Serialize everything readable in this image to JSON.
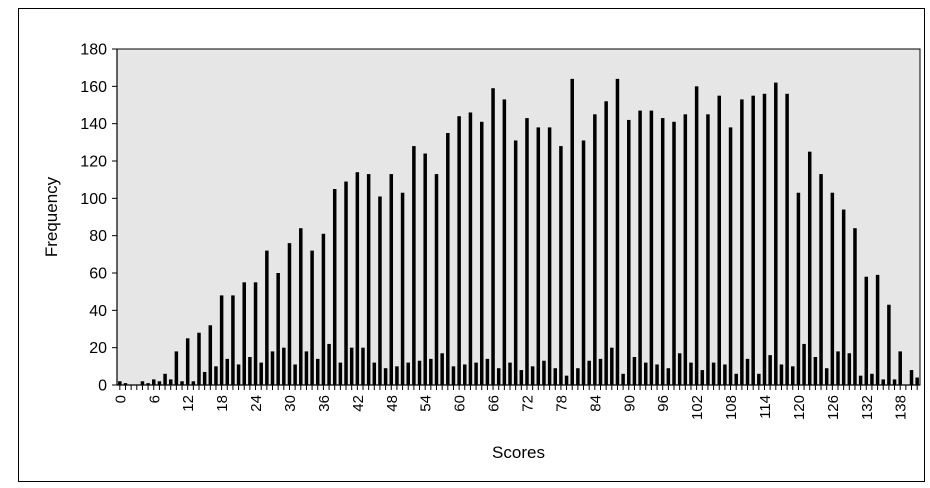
{
  "chart_data": {
    "type": "bar",
    "title": "",
    "xlabel": "Scores",
    "ylabel": "Frequency",
    "ylim": [
      0,
      180
    ],
    "yticks": [
      0,
      20,
      40,
      60,
      80,
      100,
      120,
      140,
      160,
      180
    ],
    "xlim": [
      0,
      141
    ],
    "xtick_labels": [
      "0",
      "6",
      "12",
      "18",
      "24",
      "30",
      "36",
      "42",
      "48",
      "54",
      "60",
      "66",
      "72",
      "78",
      "84",
      "90",
      "96",
      "102",
      "108",
      "114",
      "120",
      "126",
      "132",
      "138"
    ],
    "grid": false,
    "plot_background": "#e6e6e6",
    "bar_color": "#000000",
    "scores": [
      0,
      1,
      2,
      3,
      4,
      5,
      6,
      7,
      8,
      9,
      10,
      11,
      12,
      13,
      14,
      15,
      16,
      17,
      18,
      19,
      20,
      21,
      22,
      23,
      24,
      25,
      26,
      27,
      28,
      29,
      30,
      31,
      32,
      33,
      34,
      35,
      36,
      37,
      38,
      39,
      40,
      41,
      42,
      43,
      44,
      45,
      46,
      47,
      48,
      49,
      50,
      51,
      52,
      53,
      54,
      55,
      56,
      57,
      58,
      59,
      60,
      61,
      62,
      63,
      64,
      65,
      66,
      67,
      68,
      69,
      70,
      71,
      72,
      73,
      74,
      75,
      76,
      77,
      78,
      79,
      80,
      81,
      82,
      83,
      84,
      85,
      86,
      87,
      88,
      89,
      90,
      91,
      92,
      93,
      94,
      95,
      96,
      97,
      98,
      99,
      100,
      101,
      102,
      103,
      104,
      105,
      106,
      107,
      108,
      109,
      110,
      111,
      112,
      113,
      114,
      115,
      116,
      117,
      118,
      119,
      120,
      121,
      122,
      123,
      124,
      125,
      126,
      127,
      128,
      129,
      130,
      131,
      132,
      133,
      134,
      135,
      136,
      137,
      138,
      139,
      140,
      141
    ],
    "values": [
      2,
      1,
      0,
      0,
      2,
      1,
      3,
      2,
      6,
      3,
      18,
      2,
      25,
      2,
      28,
      7,
      32,
      10,
      48,
      14,
      48,
      11,
      55,
      15,
      55,
      12,
      72,
      18,
      60,
      20,
      76,
      11,
      84,
      18,
      72,
      14,
      81,
      22,
      105,
      12,
      109,
      20,
      114,
      20,
      113,
      12,
      101,
      9,
      113,
      10,
      103,
      12,
      128,
      13,
      124,
      14,
      113,
      17,
      135,
      10,
      144,
      11,
      146,
      12,
      141,
      14,
      159,
      9,
      153,
      12,
      131,
      8,
      143,
      10,
      138,
      13,
      138,
      9,
      128,
      5,
      164,
      9,
      131,
      13,
      145,
      14,
      152,
      20,
      164,
      6,
      142,
      15,
      147,
      12,
      147,
      11,
      143,
      9,
      141,
      17,
      145,
      12,
      160,
      8,
      145,
      12,
      155,
      11,
      138,
      6,
      153,
      14,
      155,
      6,
      156,
      16,
      162,
      11,
      156,
      10,
      103,
      22,
      125,
      15,
      113,
      9,
      103,
      18,
      94,
      17,
      84,
      5,
      58,
      6,
      59,
      3,
      43,
      3,
      18,
      0,
      8,
      4
    ]
  }
}
